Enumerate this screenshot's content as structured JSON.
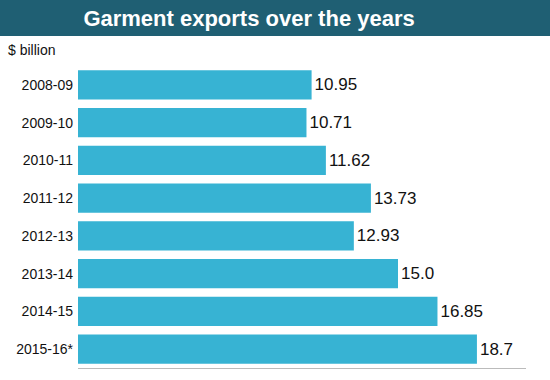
{
  "chart_data": {
    "type": "bar",
    "orientation": "horizontal",
    "title": "Garment exports over the years",
    "subtitle": "$ billion",
    "categories": [
      "2008-09",
      "2009-10",
      "2010-11",
      "2011-12",
      "2012-13",
      "2013-14",
      "2014-15",
      "2015-16*"
    ],
    "values": [
      10.95,
      10.71,
      11.62,
      13.73,
      12.93,
      15.0,
      16.85,
      18.7
    ],
    "value_labels": [
      "10.95",
      "10.71",
      "11.62",
      "13.73",
      "12.93",
      "15.0",
      "16.85",
      "18.7"
    ],
    "color": "#37b3d3",
    "data_labels": true,
    "tick_labels": "y",
    "grid": false,
    "xlim": [
      0,
      21
    ],
    "xticks": []
  }
}
